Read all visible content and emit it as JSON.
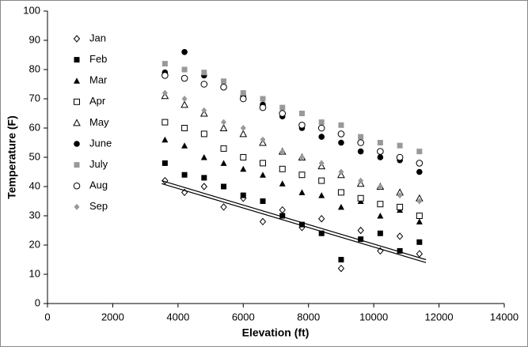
{
  "chart_data": {
    "type": "scatter",
    "x_label": "Elevation (ft)",
    "y_label": "Temperature (F)",
    "xlim": [
      0,
      14000
    ],
    "xticks": [
      0,
      2000,
      4000,
      6000,
      8000,
      10000,
      12000,
      14000
    ],
    "ylim": [
      0,
      100
    ],
    "yticks": [
      0,
      10,
      20,
      30,
      40,
      50,
      60,
      70,
      80,
      90,
      100
    ],
    "x": [
      3600,
      4200,
      4800,
      5400,
      6000,
      6600,
      7200,
      7800,
      8400,
      9000,
      9600,
      10200,
      10800,
      11400
    ],
    "series": [
      {
        "name": "Jan",
        "color": "#000000",
        "marker": "diamond-open",
        "values": [
          42,
          38,
          40,
          33,
          36,
          28,
          32,
          26,
          29,
          12,
          25,
          18,
          23,
          17
        ]
      },
      {
        "name": "Feb",
        "color": "#000000",
        "marker": "square",
        "values": [
          48,
          44,
          43,
          40,
          37,
          35,
          30,
          27,
          24,
          15,
          22,
          24,
          18,
          21
        ]
      },
      {
        "name": "Mar",
        "color": "#000000",
        "marker": "triangle",
        "values": [
          56,
          54,
          50,
          48,
          46,
          44,
          41,
          38,
          37,
          33,
          35,
          30,
          32,
          28
        ]
      },
      {
        "name": "Apr",
        "color": "#000000",
        "marker": "square-open",
        "values": [
          62,
          60,
          58,
          53,
          50,
          48,
          46,
          44,
          42,
          38,
          36,
          34,
          33,
          30
        ]
      },
      {
        "name": "May",
        "color": "#000000",
        "marker": "triangle-open",
        "values": [
          71,
          68,
          65,
          60,
          58,
          55,
          52,
          50,
          47,
          44,
          41,
          40,
          38,
          36
        ]
      },
      {
        "name": "June",
        "color": "#000000",
        "marker": "circle",
        "values": [
          79,
          86,
          78,
          74,
          71,
          68,
          64,
          60,
          57,
          55,
          52,
          50,
          49,
          45
        ]
      },
      {
        "name": "July",
        "color": "#999999",
        "marker": "square",
        "values": [
          82,
          80,
          79,
          76,
          72,
          70,
          67,
          65,
          62,
          61,
          57,
          55,
          54,
          52
        ]
      },
      {
        "name": "Aug",
        "color": "#000000",
        "marker": "circle-open",
        "values": [
          78,
          77,
          75,
          74,
          70,
          67,
          65,
          61,
          60,
          58,
          55,
          52,
          50,
          48
        ]
      },
      {
        "name": "Sep",
        "color": "#999999",
        "marker": "diamond",
        "values": [
          72,
          70,
          66,
          62,
          60,
          56,
          52,
          50,
          48,
          45,
          42,
          40,
          37,
          35
        ]
      }
    ],
    "trendlines": [
      {
        "color": "#000000",
        "x": [
          3500,
          11600
        ],
        "values": [
          42,
          15
        ]
      },
      {
        "color": "#000000",
        "x": [
          3500,
          11600
        ],
        "values": [
          41,
          14
        ]
      }
    ]
  }
}
